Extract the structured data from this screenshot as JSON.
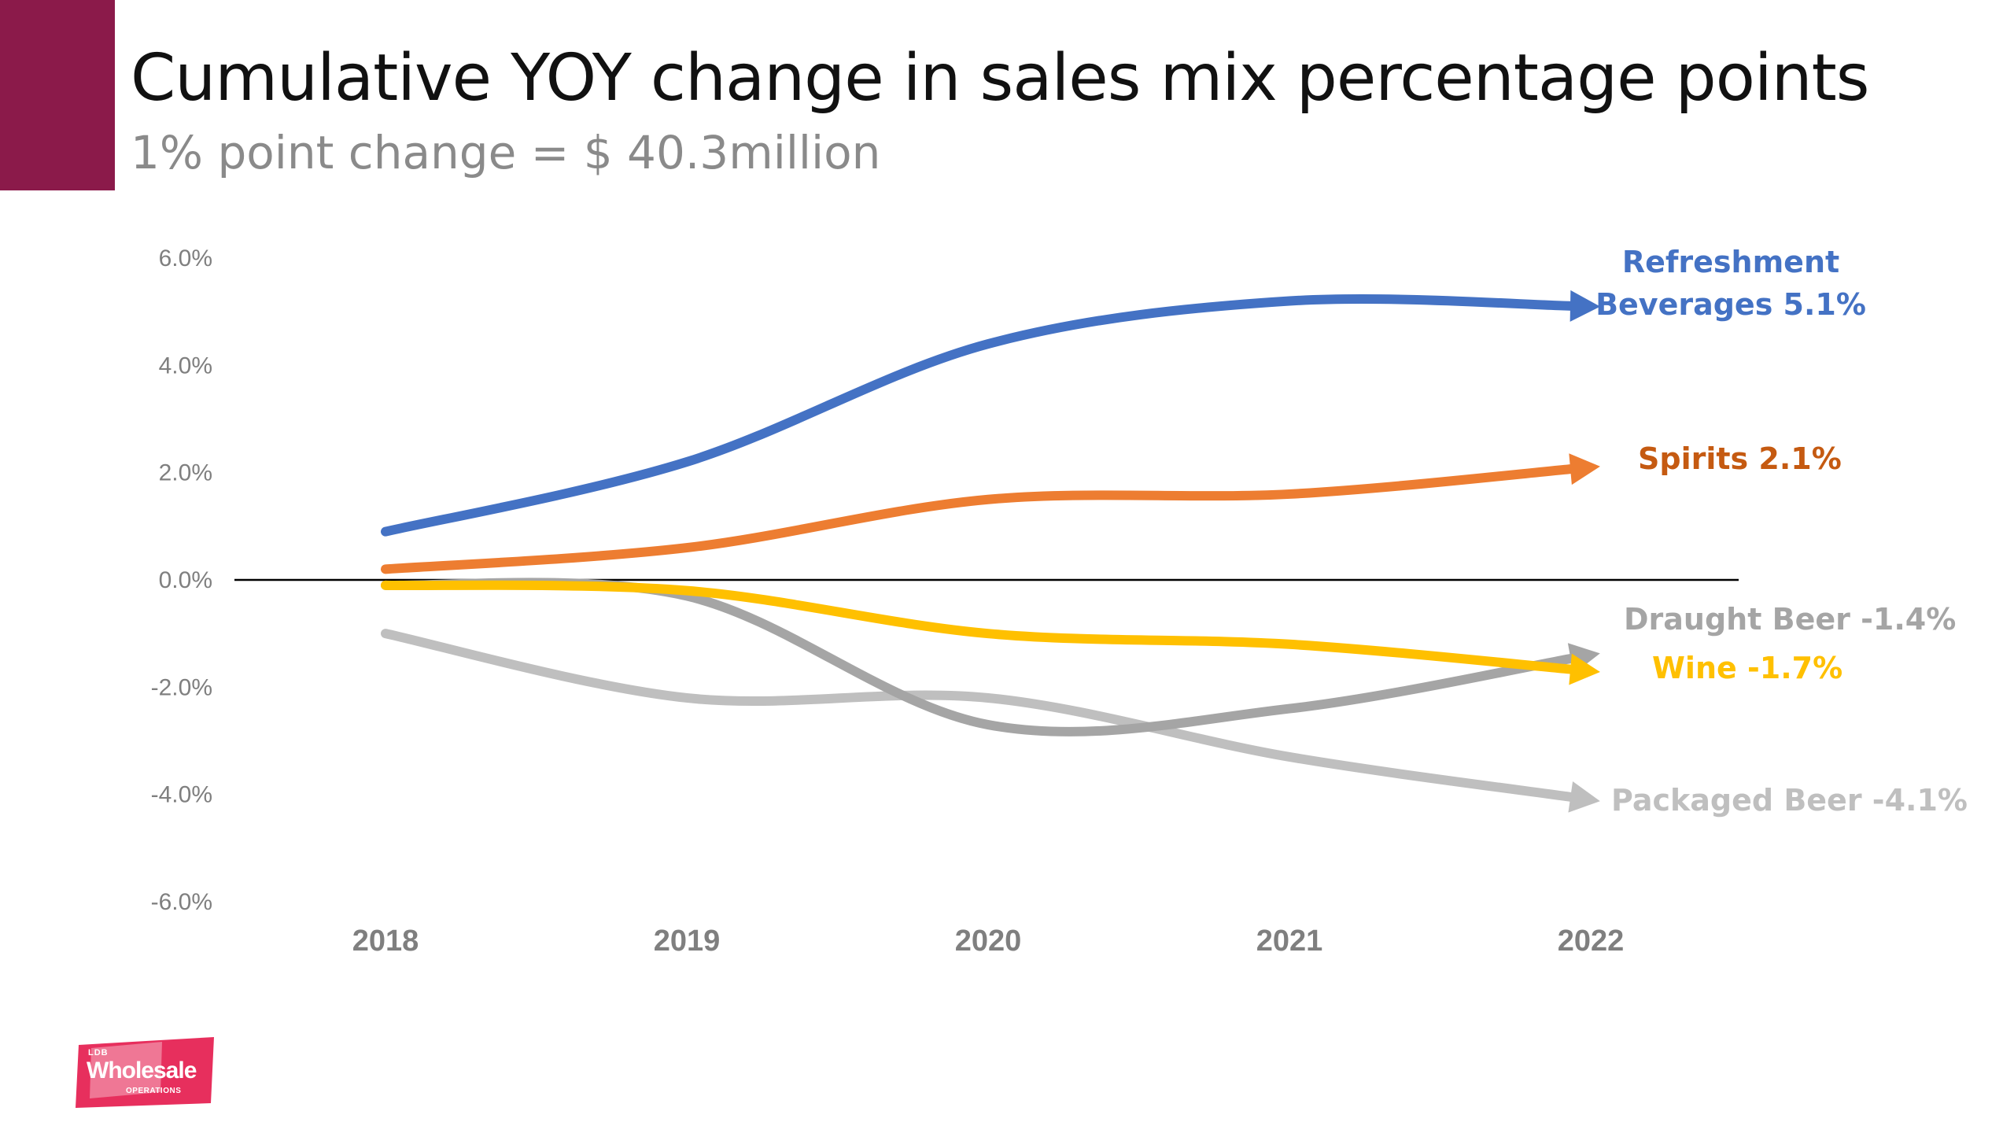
{
  "slide": {
    "title": "Cumulative YOY change in sales mix percentage points",
    "subtitle": "1% point change = $ 40.3million",
    "accent_color": "#8b1a4a"
  },
  "logo": {
    "small": "LDB",
    "main": "Wholesale",
    "sub": "OPERATIONS",
    "color": "#e4184b"
  },
  "chart_data": {
    "type": "line",
    "x": [
      "2018",
      "2019",
      "2020",
      "2021",
      "2022"
    ],
    "ylim": [
      -6.0,
      6.0
    ],
    "yticks": [
      "6.0%",
      "4.0%",
      "2.0%",
      "0.0%",
      "-2.0%",
      "-4.0%",
      "-6.0%"
    ],
    "ytick_values": [
      6,
      4,
      2,
      0,
      -2,
      -4,
      -6
    ],
    "grid": false,
    "smooth": true,
    "series": [
      {
        "name": "Packaged Beer",
        "label": "Packaged Beer -4.1%",
        "color": "#bfbfbf",
        "values": [
          -1.0,
          -2.2,
          -2.2,
          -3.3,
          -4.1
        ]
      },
      {
        "name": "Draught Beer",
        "label": "Draught Beer -1.4%",
        "color": "#a5a5a5",
        "values": [
          -0.1,
          -0.3,
          -2.7,
          -2.4,
          -1.4
        ]
      },
      {
        "name": "Wine",
        "label": "Wine -1.7%",
        "color": "#ffc000",
        "values": [
          -0.1,
          -0.2,
          -1.0,
          -1.2,
          -1.7
        ]
      },
      {
        "name": "Spirits",
        "label": "Spirits 2.1%",
        "color": "#ed7d31",
        "label_color": "#c55a11",
        "values": [
          0.2,
          0.6,
          1.5,
          1.6,
          2.1
        ]
      },
      {
        "name": "Refreshment Beverages",
        "label_lines": [
          "Refreshment",
          "Beverages 5.1%"
        ],
        "color": "#4472c4",
        "values": [
          0.9,
          2.2,
          4.4,
          5.2,
          5.1
        ]
      }
    ]
  }
}
